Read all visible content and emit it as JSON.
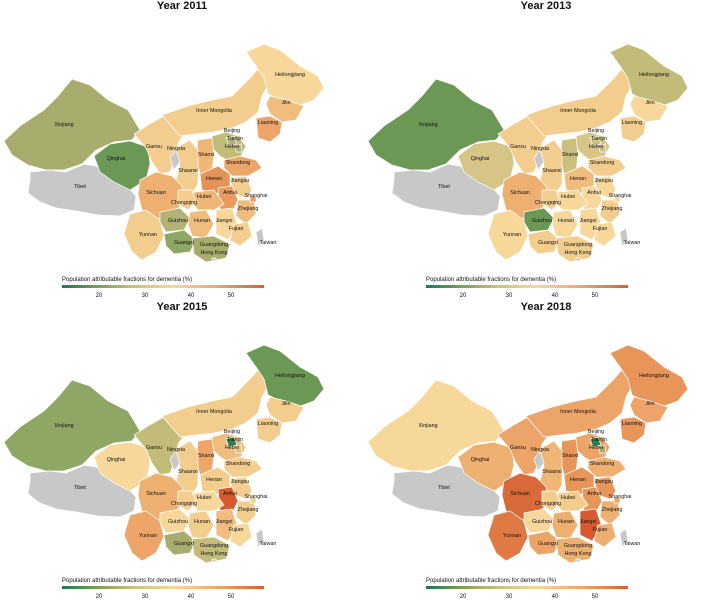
{
  "panels": [
    {
      "title": "Year 2011",
      "colors": {
        "Xinjiang": "#a8ac6c",
        "Tibet": "#c8c8c8",
        "Qinghai": "#6c9856",
        "Gansu": "#f3cd8e",
        "Ningxia": "#c8c8c8",
        "Inner Mongolia": "#f3cd8e",
        "Heilongjiang": "#f7d79a",
        "Jilin": "#f0bd7e",
        "Liaoning": "#eda468",
        "Beijing": "#b2b276",
        "Tianjin": "#b2b276",
        "Hebei": "#c2bc78",
        "Shanxi": "#f0b676",
        "Shaanxi": "#f3cd8e",
        "Shandong": "#eea56a",
        "Henan": "#e79256",
        "Jiangsu": "#f3cd8e",
        "Anhui": "#ea9a5e",
        "Hubei": "#f0b676",
        "Sichuan": "#eeb070",
        "Chongqing": "#f3cd8e",
        "Yunnan": "#f3cd8e",
        "Guizhou": "#b2b276",
        "Hunan": "#f0bd7e",
        "Jiangxi": "#f7d79a",
        "Zhejiang": "#f0bd7e",
        "Shanghai": "#ea9a5e",
        "Fujian": "#f3cd8e",
        "Guangxi": "#8fa764",
        "Guangdong": "#a8ac6c",
        "Hong Kong": "#c8c8c8",
        "Hainan": "#c8c8c8",
        "Taiwan": "#c8c8c8"
      }
    },
    {
      "title": "Year 2013",
      "colors": {
        "Xinjiang": "#6c9856",
        "Tibet": "#c8c8c8",
        "Qinghai": "#d6c587",
        "Gansu": "#f3cd8e",
        "Ningxia": "#c8c8c8",
        "Inner Mongolia": "#f3cd8e",
        "Heilongjiang": "#c2bc78",
        "Jilin": "#f7d79a",
        "Liaoning": "#f3cd8e",
        "Beijing": "#c8c07c",
        "Tianjin": "#c8c07c",
        "Hebei": "#d6c587",
        "Shanxi": "#c8c07c",
        "Shaanxi": "#f3cd8e",
        "Shandong": "#f3cd8e",
        "Henan": "#f0bd7e",
        "Jiangsu": "#f7d79a",
        "Anhui": "#f7d79a",
        "Hubei": "#f7d79a",
        "Sichuan": "#eeb070",
        "Chongqing": "#f3cd8e",
        "Yunnan": "#f7d79a",
        "Guizhou": "#6c9856",
        "Hunan": "#f7d79a",
        "Jiangxi": "#f7d79a",
        "Zhejiang": "#f3cd8e",
        "Shanghai": "#f7d79a",
        "Fujian": "#f7d79a",
        "Guangxi": "#f3cd8e",
        "Guangdong": "#f3cd8e",
        "Hong Kong": "#c8c8c8",
        "Hainan": "#c8c8c8",
        "Taiwan": "#c8c8c8"
      }
    },
    {
      "title": "Year 2015",
      "colors": {
        "Xinjiang": "#8fa764",
        "Tibet": "#c8c8c8",
        "Qinghai": "#f7d79a",
        "Gansu": "#c2bc78",
        "Ningxia": "#c8c8c8",
        "Inner Mongolia": "#f3cd8e",
        "Heilongjiang": "#6c9856",
        "Jilin": "#f3cd8e",
        "Liaoning": "#f3cd8e",
        "Beijing": "#2e7d4f",
        "Tianjin": "#d6c587",
        "Hebei": "#f0bd7e",
        "Shanxi": "#eea56a",
        "Shaanxi": "#f3cd8e",
        "Shandong": "#f3cd8e",
        "Henan": "#f3cd8e",
        "Jiangsu": "#f3cd8e",
        "Anhui": "#d75a2e",
        "Hubei": "#f7d79a",
        "Sichuan": "#eeb070",
        "Chongqing": "#f3cd8e",
        "Yunnan": "#eea56a",
        "Guizhou": "#f7d79a",
        "Hunan": "#f3cd8e",
        "Jiangxi": "#f0bd7e",
        "Zhejiang": "#f3cd8e",
        "Shanghai": "#f3cd8e",
        "Fujian": "#f7d79a",
        "Guangxi": "#a8ac6c",
        "Guangdong": "#c2bc78",
        "Hong Kong": "#c8c8c8",
        "Hainan": "#c8c8c8",
        "Taiwan": "#c8c8c8"
      }
    },
    {
      "title": "Year 2018",
      "colors": {
        "Xinjiang": "#f6d99a",
        "Tibet": "#c8c8c8",
        "Qinghai": "#eeb070",
        "Gansu": "#eda468",
        "Ningxia": "#c8c8c8",
        "Inner Mongolia": "#eda468",
        "Heilongjiang": "#e8955a",
        "Jilin": "#eda468",
        "Liaoning": "#e8955a",
        "Beijing": "#2e7d4f",
        "Tianjin": "#a8ac6c",
        "Hebei": "#eda468",
        "Shanxi": "#e8955a",
        "Shaanxi": "#f0b676",
        "Shandong": "#eeb070",
        "Henan": "#e8955a",
        "Jiangsu": "#e8955a",
        "Anhui": "#e8955a",
        "Hubei": "#f3cd8e",
        "Sichuan": "#d86a3a",
        "Chongqing": "#f3cd8e",
        "Yunnan": "#df7a45",
        "Guizhou": "#f7d79a",
        "Hunan": "#eeb070",
        "Jiangxi": "#d75a2e",
        "Zhejiang": "#eeb070",
        "Shanghai": "#eea56a",
        "Fujian": "#eeb070",
        "Guangxi": "#eda468",
        "Guangdong": "#eeb070",
        "Hong Kong": "#c8c8c8",
        "Hainan": "#c8c8c8",
        "Taiwan": "#c8c8c8"
      }
    }
  ],
  "legend": {
    "title": "Population attributable fractions for dementia (%)",
    "ticks": [
      "20",
      "30",
      "40",
      "50"
    ],
    "colors": [
      "#1a7a52",
      "#7d9f5a",
      "#c8c07c",
      "#f6d99a",
      "#eda468",
      "#d95f35"
    ]
  }
}
